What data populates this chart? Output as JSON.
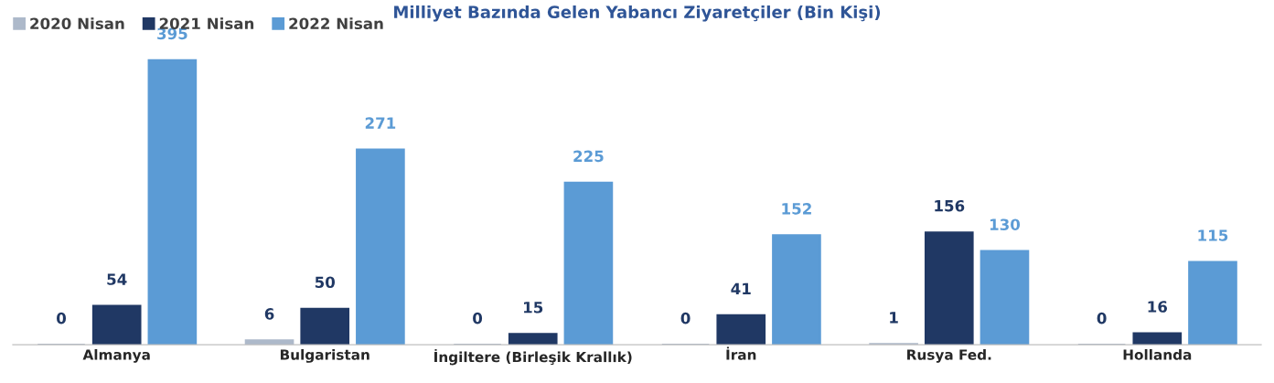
{
  "chart_data": {
    "type": "bar",
    "title": "Milliyet Bazında Gelen Yabancı Ziyaretçiler (Bin Kişi)",
    "categories": [
      "Almanya",
      "Bulgaristan",
      "İngiltere (Birleşik Krallık)",
      "İran",
      "Rusya Fed.",
      "Hollanda"
    ],
    "series": [
      {
        "name": "2020 Nisan",
        "color": "#adb9ca",
        "values": [
          0,
          6,
          0,
          0,
          1,
          0
        ]
      },
      {
        "name": "2021 Nisan",
        "color": "#203864",
        "values": [
          54,
          50,
          15,
          41,
          156,
          16
        ]
      },
      {
        "name": "2022 Nisan",
        "color": "#5b9bd5",
        "values": [
          395,
          271,
          225,
          152,
          130,
          115
        ]
      }
    ],
    "data_labels": true,
    "legend": "top left",
    "grid": false,
    "tick_labels": "x"
  }
}
